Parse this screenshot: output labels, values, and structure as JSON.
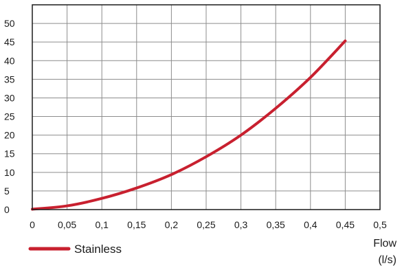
{
  "chart_data": {
    "type": "line",
    "title": "",
    "xlabel": "Flow\n(l/s)",
    "ylabel": "",
    "xlim": [
      0,
      0.5
    ],
    "ylim": [
      0,
      55
    ],
    "x_ticks": [
      0,
      0.05,
      0.1,
      0.15,
      0.2,
      0.25,
      0.3,
      0.35,
      0.4,
      0.45,
      0.5
    ],
    "x_tick_labels": [
      "0",
      "0,05",
      "0,1",
      "0,15",
      "0,2",
      "0,25",
      "0,3",
      "0,35",
      "0,4",
      "0,45",
      "0,5"
    ],
    "y_ticks": [
      0,
      5,
      10,
      15,
      20,
      25,
      30,
      35,
      40,
      45,
      50
    ],
    "y_tick_labels": [
      "0",
      "5",
      "10",
      "15",
      "20",
      "25",
      "30",
      "35",
      "40",
      "45",
      "50"
    ],
    "grid": true,
    "legend_position": "bottom-left",
    "series": [
      {
        "name": "Stainless",
        "color": "#c8202f",
        "x": [
          0,
          0.05,
          0.1,
          0.15,
          0.2,
          0.25,
          0.3,
          0.35,
          0.4,
          0.45
        ],
        "y": [
          0.1,
          1.0,
          3.0,
          5.8,
          9.4,
          14.2,
          20.0,
          27.2,
          35.5,
          45.3
        ]
      }
    ]
  }
}
